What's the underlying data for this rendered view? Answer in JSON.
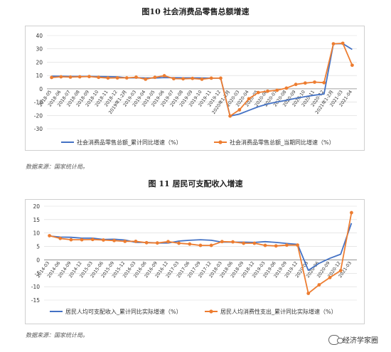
{
  "fig10": {
    "title": "图10  社会消费品零售总额增速",
    "source": "数据来源：国家统计局。"
  },
  "fig11": {
    "title": "图 11  居民可支配收入增速",
    "source": "数据来源：国家统计局。"
  },
  "watermark": "经济学家圈",
  "colors": {
    "blue": "#4472C4",
    "orange": "#ED7D31",
    "grid": "#d9d9d9",
    "axis": "#888888"
  },
  "chart_data": [
    {
      "type": "line",
      "title": "图10  社会消费品零售总额增速",
      "ylim": [
        -30,
        40
      ],
      "yticks": [
        -30,
        -20,
        -10,
        0,
        10,
        20,
        30,
        40
      ],
      "grid": true,
      "legend": "bottom",
      "x": [
        "2018-05",
        "2018-06",
        "2018-07",
        "2018-08",
        "2018-09",
        "2018-10",
        "2018-11",
        "2018-12",
        "2019年1-2月",
        "2019-03",
        "2019-04",
        "2019-05",
        "2019-06",
        "2019-07",
        "2019-08",
        "2019-09",
        "2019-10",
        "2019-11",
        "2019-12",
        "2020年1-2月",
        "2020-03",
        "2020-04",
        "2020-05",
        "2020-06",
        "2020-07",
        "2020-08",
        "2020-09",
        "2020-10",
        "2020-11",
        "2020-12",
        "2021年1-2月",
        "2021-03",
        "2021-04"
      ],
      "xtick_labels": [
        "2018-05",
        "2018-06",
        "2018-07",
        "2018-08",
        "2018-09",
        "2018-10",
        "2018-11",
        "2018-12",
        "2019年1-2月",
        "2019-03",
        "2019-04",
        "2019-05",
        "2019-06",
        "2019-07",
        "2019-08",
        "2019-09",
        "2019-10",
        "2019-11",
        "2019-12",
        "2020年1-2月",
        "2020-03",
        "2020-04",
        "2020-05",
        "2020-06",
        "2020-07",
        "2020-08",
        "2020-09",
        "2020-10",
        "2020-11",
        "2020-12",
        "2021年1-2月",
        "2021-03",
        "2021-04"
      ],
      "series": [
        {
          "name": "社会消费品零售总额_累计同比增速（%）",
          "color": "#4472C4",
          "marker": false,
          "values": [
            9.5,
            9.4,
            9.3,
            9.3,
            9.3,
            9.2,
            9.1,
            9.0,
            8.2,
            8.3,
            8.1,
            8.1,
            8.4,
            8.3,
            8.2,
            8.2,
            8.1,
            8.0,
            8.0,
            -20.5,
            -19.0,
            -16.2,
            -13.5,
            -11.4,
            -9.9,
            -8.6,
            -7.2,
            -5.9,
            -4.8,
            -3.9,
            33.8,
            33.9,
            29.6
          ]
        },
        {
          "name": "社会消费品零售总额_当期同比增速（%）",
          "color": "#ED7D31",
          "marker": true,
          "values": [
            8.5,
            9.0,
            8.8,
            9.0,
            9.2,
            8.6,
            8.1,
            8.2,
            8.2,
            8.7,
            7.2,
            8.6,
            9.8,
            7.6,
            7.5,
            7.8,
            7.2,
            8.0,
            8.0,
            -20.5,
            -15.8,
            -7.5,
            -2.8,
            -1.8,
            -1.1,
            0.5,
            3.3,
            4.3,
            5.0,
            4.6,
            33.8,
            34.2,
            17.7
          ]
        }
      ]
    },
    {
      "type": "line",
      "title": "图 11  居民可支配收入增速",
      "ylim": [
        -15,
        20
      ],
      "yticks": [
        -15,
        -10,
        -5,
        0,
        5,
        10,
        15,
        20
      ],
      "grid": true,
      "legend": "bottom",
      "x": [
        "2014-03",
        "2014-06",
        "2014-09",
        "2014-12",
        "2015-03",
        "2015-06",
        "2015-09",
        "2015-12",
        "2016-03",
        "2016-06",
        "2016-09",
        "2016-12",
        "2017-03",
        "2017-06",
        "2017-09",
        "2017-12",
        "2018-03",
        "2018-06",
        "2018-09",
        "2018-12",
        "2019-03",
        "2019-06",
        "2019-09",
        "2019-12",
        "2020-03",
        "2020-06",
        "2020-09",
        "2020-12",
        "2021-03"
      ],
      "xtick_labels": [
        "2014-03",
        "2014-06",
        "2014-09",
        "2014-12",
        "2015-03",
        "2015-06",
        "2015-09",
        "2015-12",
        "2016-03",
        "2016-06",
        "2016-09",
        "2016-12",
        "2017-03",
        "2017-06",
        "2017-09",
        "2017-12",
        "2018-03",
        "2018-06",
        "2018-09",
        "2018-12",
        "2019-03",
        "2019-06",
        "2019-09",
        "2019-12",
        "2020-03",
        "2020-06",
        "2020-09",
        "2020-12",
        "2021-03"
      ],
      "series": [
        {
          "name": "居民人均可支配收入_累计同比实际增速（%）",
          "color": "#4472C4",
          "marker": false,
          "values": [
            8.9,
            8.5,
            8.4,
            8.1,
            8.1,
            7.6,
            7.7,
            7.4,
            6.5,
            6.5,
            6.3,
            6.3,
            7.0,
            7.3,
            7.5,
            7.3,
            6.6,
            6.6,
            6.6,
            6.5,
            6.8,
            6.5,
            6.1,
            5.8,
            -3.9,
            -1.3,
            0.6,
            2.1,
            13.7
          ]
        },
        {
          "name": "居民人均消费性支出_累计同比实际增速（%）",
          "color": "#ED7D31",
          "marker": true,
          "values": [
            9.0,
            8.0,
            7.5,
            7.5,
            7.6,
            7.4,
            7.2,
            6.9,
            6.9,
            6.4,
            6.3,
            6.8,
            6.2,
            5.9,
            5.4,
            5.4,
            6.8,
            6.7,
            6.2,
            6.2,
            5.4,
            5.2,
            5.5,
            5.5,
            -12.5,
            -9.3,
            -6.6,
            -4.0,
            17.6
          ]
        }
      ]
    }
  ]
}
